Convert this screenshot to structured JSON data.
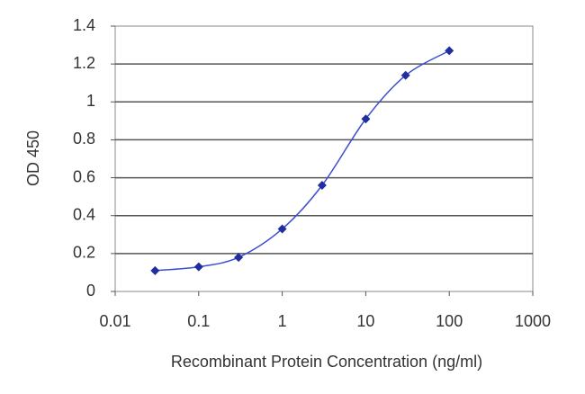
{
  "chart_data": {
    "type": "line",
    "x_label": "Recombinant Protein Concentration (ng/ml)",
    "y_label": "OD 450",
    "x": [
      0.03,
      0.1,
      0.3,
      1,
      3,
      10,
      30,
      100
    ],
    "series": [
      {
        "color": "#1f2f9e",
        "values": [
          0.11,
          0.13,
          0.18,
          0.33,
          0.56,
          0.91,
          1.14,
          1.27
        ]
      }
    ],
    "xlim": [
      0.01,
      1000
    ],
    "xticks": [
      0.01,
      0.1,
      1,
      10,
      100,
      1000
    ],
    "x_scale": "log",
    "ylim": [
      0,
      1.4
    ],
    "yticks": [
      0,
      0.2,
      0.4,
      0.6,
      0.8,
      1,
      1.2,
      1.4
    ],
    "grid": true
  }
}
